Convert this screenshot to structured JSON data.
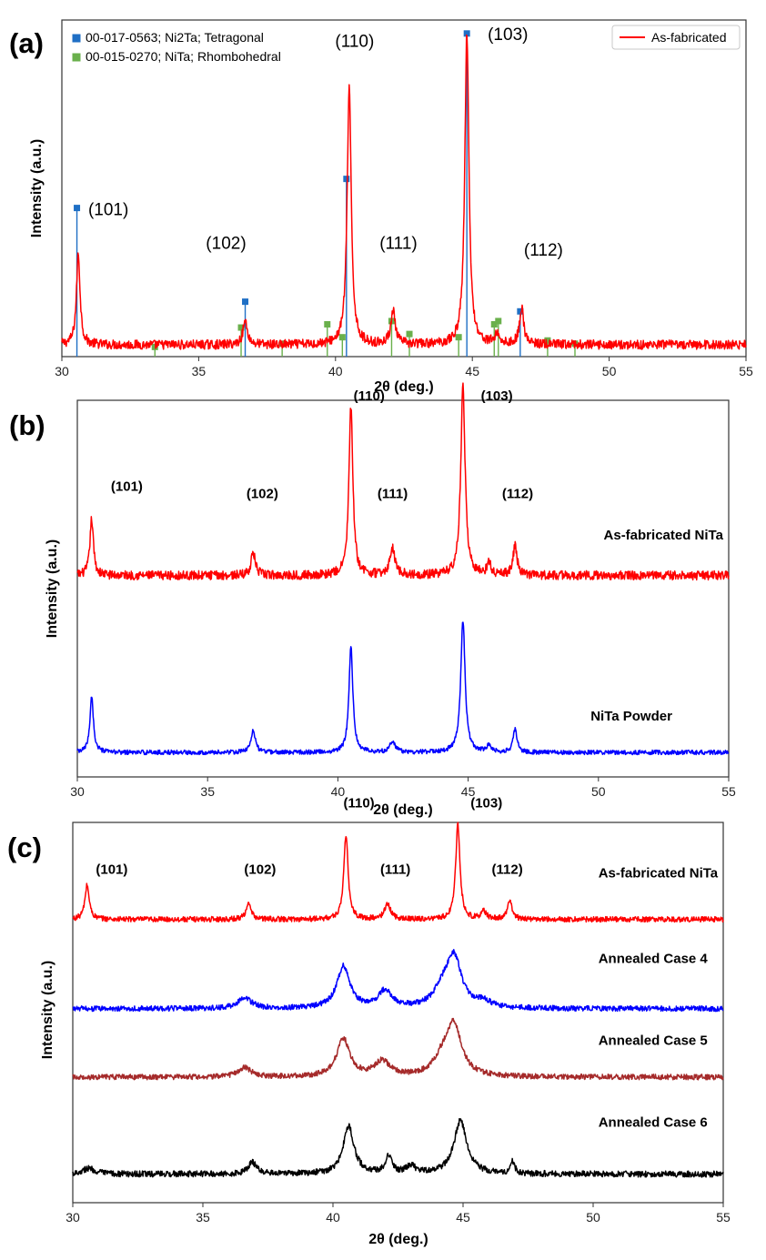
{
  "figure": {
    "panels": [
      {
        "id": "a",
        "letter": "(a)",
        "xlabel": "2θ (deg.)",
        "ylabel": "Intensity (a.u.)"
      },
      {
        "id": "b",
        "letter": "(b)",
        "xlabel": "2θ (deg.)",
        "ylabel": "Intensity (a.u.)"
      },
      {
        "id": "c",
        "letter": "(c)",
        "xlabel": "2θ (deg.)",
        "ylabel": "Intensity (a.u.)"
      }
    ]
  },
  "colors": {
    "as_fabricated": "#ff0000",
    "powder": "#0000ff",
    "case4": "#0000ff",
    "case5": "#a52a2a",
    "case6": "#000000",
    "ref_tetragonal": "#1f6fc5",
    "ref_rhombohedral": "#6ab04c"
  },
  "chart_data": [
    {
      "panel": "a",
      "type": "line",
      "title": "",
      "xlabel": "2θ (deg.)",
      "ylabel": "Intensity (a.u.)",
      "xlim": [
        30,
        55
      ],
      "ylim": [
        0,
        1.0
      ],
      "xticks": [
        30,
        35,
        40,
        45,
        50,
        55
      ],
      "legend_position": "top-right",
      "series": [
        {
          "name": "As-fabricated",
          "color": "#ff0000",
          "baseline": 0.035,
          "noise": 0.014,
          "peaks": [
            {
              "x": 30.6,
              "h": 0.27,
              "w": 0.08
            },
            {
              "x": 36.7,
              "h": 0.07,
              "w": 0.1
            },
            {
              "x": 40.5,
              "h": 0.76,
              "w": 0.09
            },
            {
              "x": 42.1,
              "h": 0.1,
              "w": 0.1
            },
            {
              "x": 44.8,
              "h": 0.93,
              "w": 0.09
            },
            {
              "x": 45.9,
              "h": 0.03,
              "w": 0.1
            },
            {
              "x": 46.8,
              "h": 0.11,
              "w": 0.09
            }
          ]
        }
      ],
      "reference_patterns": [
        {
          "name": "00-017-0563; Ni2Ta; Tetragonal",
          "color": "#1f6fc5",
          "sticks": [
            {
              "x": 30.55,
              "h": 0.46
            },
            {
              "x": 36.7,
              "h": 0.17
            },
            {
              "x": 40.4,
              "h": 0.55
            },
            {
              "x": 44.8,
              "h": 1.0
            },
            {
              "x": 46.75,
              "h": 0.14
            }
          ]
        },
        {
          "name": "00-015-0270; NiTa; Rhombohedral",
          "color": "#6ab04c",
          "sticks": [
            {
              "x": 33.4,
              "h": 0.03
            },
            {
              "x": 36.55,
              "h": 0.09
            },
            {
              "x": 38.05,
              "h": 0.04
            },
            {
              "x": 39.7,
              "h": 0.1
            },
            {
              "x": 40.25,
              "h": 0.06
            },
            {
              "x": 42.05,
              "h": 0.11
            },
            {
              "x": 42.7,
              "h": 0.07
            },
            {
              "x": 44.5,
              "h": 0.06
            },
            {
              "x": 45.8,
              "h": 0.1
            },
            {
              "x": 45.95,
              "h": 0.11
            },
            {
              "x": 47.75,
              "h": 0.05
            },
            {
              "x": 48.75,
              "h": 0.04
            }
          ]
        }
      ],
      "annotations": [
        {
          "text": "(101)",
          "x": 31.7,
          "y": 0.42
        },
        {
          "text": "(102)",
          "x": 36.0,
          "y": 0.32
        },
        {
          "text": "(110)",
          "x": 40.7,
          "y": 0.92
        },
        {
          "text": "(111)",
          "x": 42.3,
          "y": 0.32
        },
        {
          "text": "(103)",
          "x": 46.3,
          "y": 0.94
        },
        {
          "text": "(112)",
          "x": 47.6,
          "y": 0.3
        }
      ]
    },
    {
      "panel": "b",
      "type": "line",
      "title": "",
      "xlabel": "2θ (deg.)",
      "ylabel": "Intensity (a.u.)",
      "xlim": [
        30,
        55
      ],
      "ylim": [
        0,
        1.0
      ],
      "xticks": [
        30,
        35,
        40,
        45,
        50,
        55
      ],
      "series": [
        {
          "name": "As-fabricated NiTa",
          "color": "#ff0000",
          "baseline": 0.535,
          "noise": 0.012,
          "peaks": [
            {
              "x": 30.55,
              "h": 0.15,
              "w": 0.08
            },
            {
              "x": 36.75,
              "h": 0.06,
              "w": 0.1
            },
            {
              "x": 40.5,
              "h": 0.45,
              "w": 0.09
            },
            {
              "x": 42.1,
              "h": 0.07,
              "w": 0.12
            },
            {
              "x": 44.8,
              "h": 0.5,
              "w": 0.1
            },
            {
              "x": 45.8,
              "h": 0.03,
              "w": 0.1
            },
            {
              "x": 46.8,
              "h": 0.08,
              "w": 0.09
            }
          ]
        },
        {
          "name": "NiTa Powder",
          "color": "#0000ff",
          "baseline": 0.065,
          "noise": 0.006,
          "peaks": [
            {
              "x": 30.55,
              "h": 0.15,
              "w": 0.08
            },
            {
              "x": 36.75,
              "h": 0.06,
              "w": 0.1
            },
            {
              "x": 40.5,
              "h": 0.28,
              "w": 0.09
            },
            {
              "x": 42.1,
              "h": 0.03,
              "w": 0.12
            },
            {
              "x": 44.8,
              "h": 0.35,
              "w": 0.1
            },
            {
              "x": 45.8,
              "h": 0.02,
              "w": 0.1
            },
            {
              "x": 46.8,
              "h": 0.06,
              "w": 0.09
            }
          ]
        }
      ],
      "annotations": [
        {
          "text": "(101)",
          "x": 31.9,
          "y": 0.76
        },
        {
          "text": "(102)",
          "x": 37.1,
          "y": 0.74
        },
        {
          "text": "(110)",
          "x": 41.2,
          "y": 1.0
        },
        {
          "text": "(111)",
          "x": 42.1,
          "y": 0.74
        },
        {
          "text": "(103)",
          "x": 46.1,
          "y": 1.0
        },
        {
          "text": "(112)",
          "x": 46.9,
          "y": 0.74
        }
      ],
      "series_labels": [
        {
          "text": "As-fabricated NiTa",
          "x": 50.2,
          "y": 0.63
        },
        {
          "text": "NiTa Powder",
          "x": 49.7,
          "y": 0.15
        }
      ]
    },
    {
      "panel": "c",
      "type": "line",
      "title": "",
      "xlabel": "2θ (deg.)",
      "ylabel": "Intensity (a.u.)",
      "xlim": [
        30,
        55
      ],
      "ylim": [
        0,
        1.0
      ],
      "xticks": [
        30,
        35,
        40,
        45,
        50,
        55
      ],
      "series": [
        {
          "name": "As-fabricated NiTa",
          "color": "#ff0000",
          "baseline": 0.745,
          "noise": 0.007,
          "peaks": [
            {
              "x": 30.55,
              "h": 0.09,
              "w": 0.1
            },
            {
              "x": 36.75,
              "h": 0.04,
              "w": 0.12
            },
            {
              "x": 40.5,
              "h": 0.22,
              "w": 0.1
            },
            {
              "x": 42.1,
              "h": 0.04,
              "w": 0.14
            },
            {
              "x": 44.8,
              "h": 0.25,
              "w": 0.1
            },
            {
              "x": 45.8,
              "h": 0.02,
              "w": 0.12
            },
            {
              "x": 46.8,
              "h": 0.05,
              "w": 0.1
            }
          ]
        },
        {
          "name": "Annealed Case 4",
          "color": "#0000ff",
          "baseline": 0.51,
          "noise": 0.007,
          "peaks": [
            {
              "x": 36.6,
              "h": 0.03,
              "w": 0.3
            },
            {
              "x": 40.4,
              "h": 0.11,
              "w": 0.3
            },
            {
              "x": 42.0,
              "h": 0.045,
              "w": 0.3
            },
            {
              "x": 44.65,
              "h": 0.13,
              "w": 0.35
            },
            {
              "x": 44.2,
              "h": 0.04,
              "w": 0.4
            },
            {
              "x": 45.8,
              "h": 0.015,
              "w": 0.3
            }
          ]
        },
        {
          "name": "Annealed Case 5",
          "color": "#a52a2a",
          "baseline": 0.33,
          "noise": 0.007,
          "peaks": [
            {
              "x": 36.6,
              "h": 0.025,
              "w": 0.3
            },
            {
              "x": 40.4,
              "h": 0.1,
              "w": 0.3
            },
            {
              "x": 41.9,
              "h": 0.04,
              "w": 0.35
            },
            {
              "x": 44.65,
              "h": 0.13,
              "w": 0.35
            },
            {
              "x": 44.2,
              "h": 0.04,
              "w": 0.4
            }
          ]
        },
        {
          "name": "Annealed Case 6",
          "color": "#000000",
          "baseline": 0.075,
          "noise": 0.008,
          "peaks": [
            {
              "x": 30.6,
              "h": 0.015,
              "w": 0.3
            },
            {
              "x": 36.9,
              "h": 0.03,
              "w": 0.2
            },
            {
              "x": 40.6,
              "h": 0.125,
              "w": 0.25
            },
            {
              "x": 42.15,
              "h": 0.045,
              "w": 0.15
            },
            {
              "x": 43.0,
              "h": 0.02,
              "w": 0.2
            },
            {
              "x": 44.9,
              "h": 0.14,
              "w": 0.3
            },
            {
              "x": 46.9,
              "h": 0.03,
              "w": 0.1
            }
          ]
        }
      ],
      "annotations": [
        {
          "text": "(101)",
          "x": 31.5,
          "y": 0.865
        },
        {
          "text": "(102)",
          "x": 37.2,
          "y": 0.865
        },
        {
          "text": "(110)",
          "x": 41.0,
          "y": 1.04
        },
        {
          "text": "(111)",
          "x": 42.4,
          "y": 0.865
        },
        {
          "text": "(103)",
          "x": 45.9,
          "y": 1.04
        },
        {
          "text": "(112)",
          "x": 46.7,
          "y": 0.865
        }
      ],
      "series_labels": [
        {
          "text": "As-fabricated NiTa",
          "x": 50.2,
          "y": 0.855
        },
        {
          "text": "Annealed Case 4",
          "x": 50.2,
          "y": 0.63
        },
        {
          "text": "Annealed Case 5",
          "x": 50.2,
          "y": 0.415
        },
        {
          "text": "Annealed Case 6",
          "x": 50.2,
          "y": 0.2
        }
      ]
    }
  ]
}
